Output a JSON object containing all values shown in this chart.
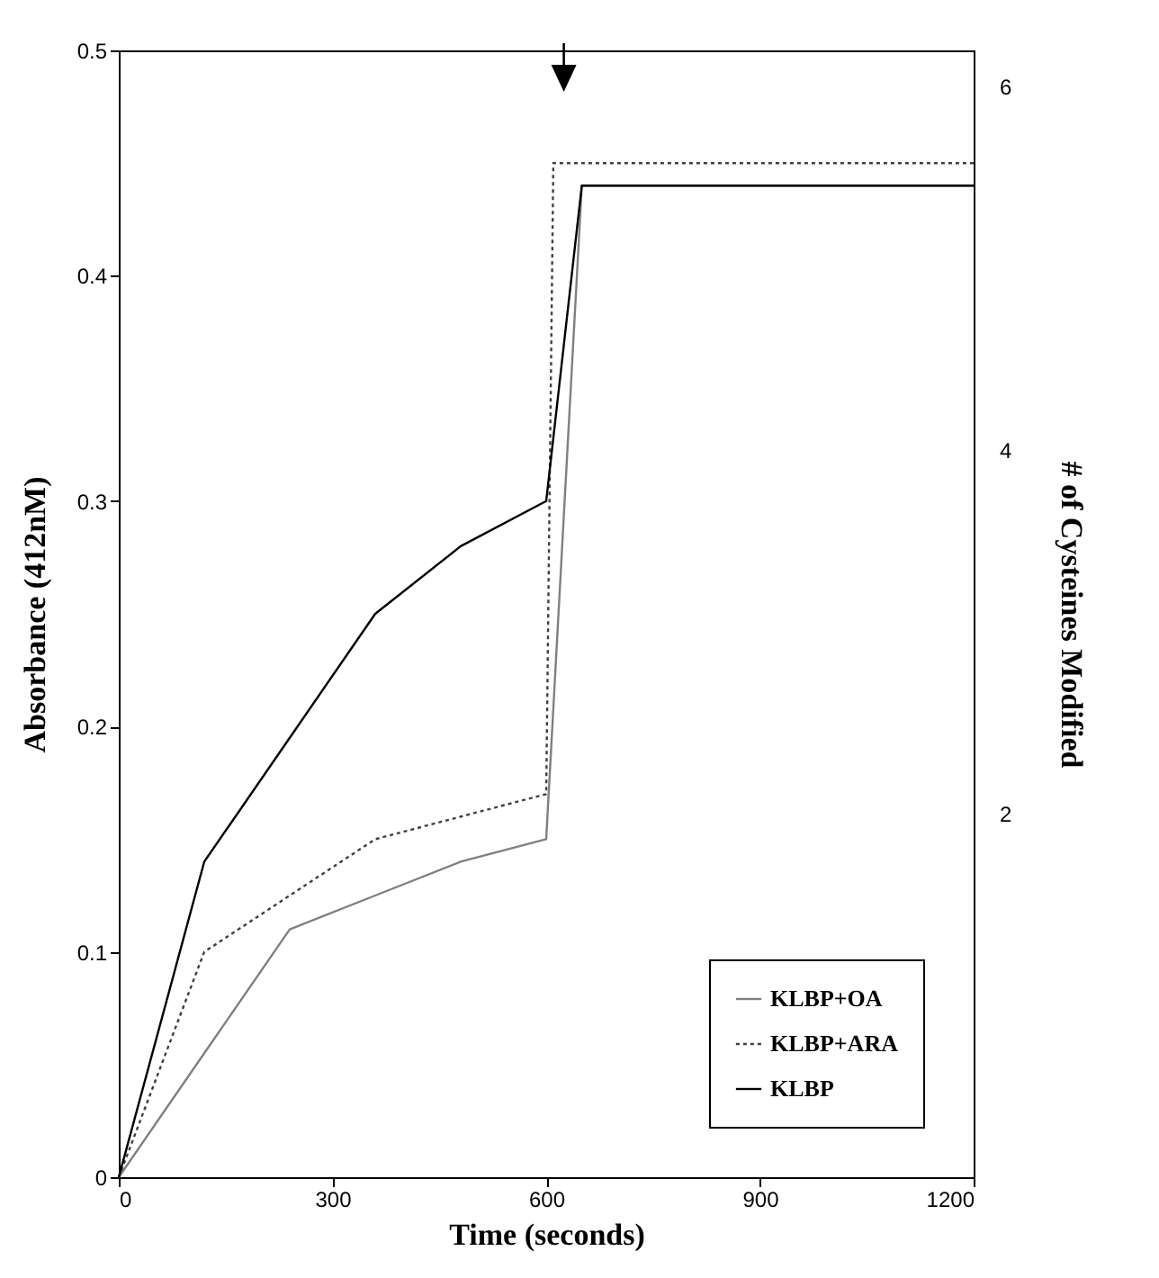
{
  "chart_data": {
    "type": "line",
    "xlabel": "Time (seconds)",
    "ylabel": "Absorbance (412nM)",
    "y2label": "# of Cysteines Modified",
    "xlim": [
      0,
      1200
    ],
    "xticks": [
      0,
      300,
      600,
      900,
      1200
    ],
    "ylim": [
      0,
      0.5
    ],
    "yticks": [
      0,
      0.1,
      0.2,
      0.3,
      0.4,
      0.5
    ],
    "y2lim": [
      0,
      6.2
    ],
    "y2ticks": [
      2,
      4,
      6
    ],
    "legend": "bottom right",
    "grid": false,
    "marker": "none",
    "series": [
      {
        "name": "KLBP+OA",
        "color": "#808080",
        "line_style": "solid",
        "x": [
          0,
          120,
          240,
          360,
          480,
          600,
          650,
          1200
        ],
        "values": [
          0,
          0.055,
          0.11,
          0.125,
          0.14,
          0.15,
          0.44,
          0.44
        ]
      },
      {
        "name": "KLBP+ARA",
        "color": "#404040",
        "line_style": "dotted",
        "x": [
          0,
          120,
          240,
          360,
          480,
          600,
          610,
          1200
        ],
        "values": [
          0,
          0.1,
          0.125,
          0.15,
          0.16,
          0.17,
          0.45,
          0.45
        ]
      },
      {
        "name": "KLBP",
        "color": "#000000",
        "line_style": "solid",
        "x": [
          0,
          120,
          240,
          360,
          480,
          600,
          650,
          1200
        ],
        "values": [
          0,
          0.14,
          0.195,
          0.25,
          0.28,
          0.3,
          0.44,
          0.44
        ]
      }
    ]
  }
}
